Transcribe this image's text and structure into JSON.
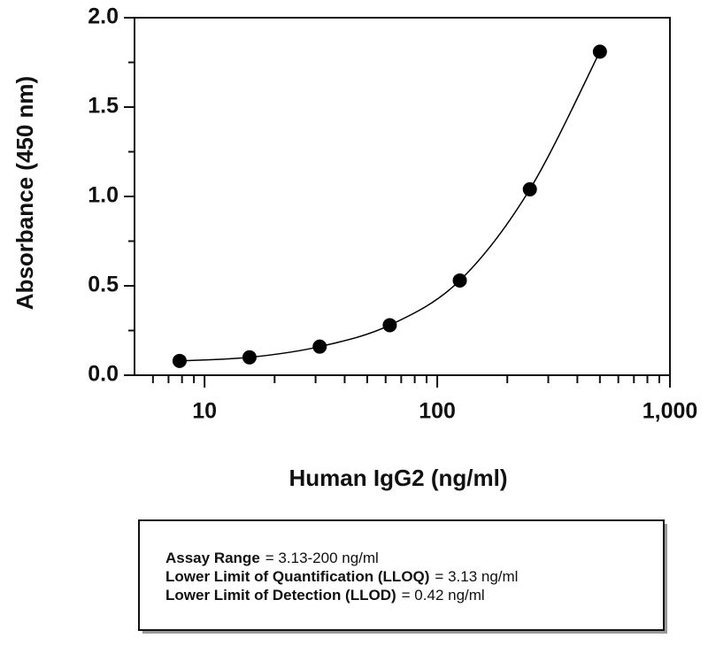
{
  "chart_data": {
    "type": "scatter",
    "xlabel": "Human IgG2 (ng/ml)",
    "ylabel": "Absorbance (450 nm)",
    "x": [
      7.81,
      15.6,
      31.25,
      62.5,
      125,
      250,
      500
    ],
    "values": [
      0.08,
      0.1,
      0.16,
      0.28,
      0.53,
      1.04,
      1.81
    ],
    "color": "#000000",
    "xscale": "log",
    "xlim": [
      5,
      1000
    ],
    "ylim": [
      0,
      2
    ],
    "xticks": [
      10,
      100,
      {
        "value": 1000,
        "label": "1,000"
      }
    ],
    "xminorticks": [
      6,
      7,
      8,
      9,
      20,
      30,
      40,
      50,
      60,
      70,
      80,
      90,
      200,
      300,
      400,
      500,
      600,
      700,
      800,
      900
    ],
    "yticks": [
      {
        "value": 0,
        "label": "0.0"
      },
      0.5,
      {
        "value": 1,
        "label": "1.0"
      },
      1.5,
      {
        "value": 2,
        "label": "2.0"
      }
    ],
    "yminorticks": [
      0.25,
      0.75,
      1.25,
      1.75
    ],
    "annotations": [
      {
        "label": "Assay Range",
        "text": "= 3.13-200 ng/ml"
      },
      {
        "label": "Lower Limit of Quantification (LLOQ)",
        "text": "=  3.13 ng/ml"
      },
      {
        "label": "Lower Limit of Detection (LLOD)",
        "text": "=  0.42 ng/ml"
      }
    ]
  }
}
